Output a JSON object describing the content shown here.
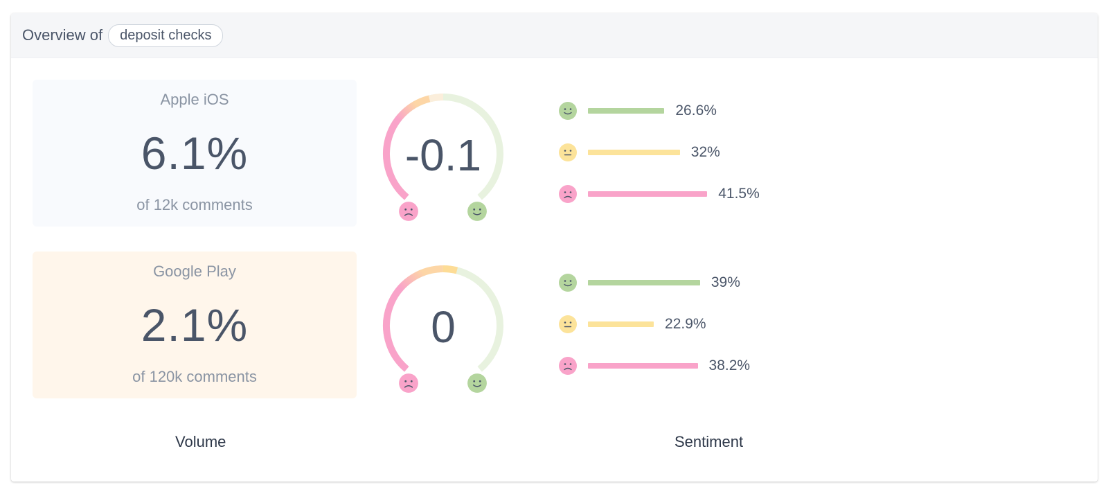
{
  "header": {
    "prefix": "Overview of",
    "topic": "deposit checks"
  },
  "footer": {
    "volume_label": "Volume",
    "sentiment_label": "Sentiment"
  },
  "colors": {
    "positive": "#b4d59e",
    "neutral": "#fce39a",
    "negative": "#f9a3c9"
  },
  "platforms": [
    {
      "name": "Apple iOS",
      "volume_pct": "6.1%",
      "comments": "of 12k comments",
      "box_color": "#f8fafd",
      "score_label": "-0.1",
      "score": -0.1,
      "sentiment": [
        {
          "type": "positive",
          "icon": "happy-face-icon",
          "value": 26.6,
          "label": "26.6%"
        },
        {
          "type": "neutral",
          "icon": "neutral-face-icon",
          "value": 32,
          "label": "32%"
        },
        {
          "type": "negative",
          "icon": "sad-face-icon",
          "value": 41.5,
          "label": "41.5%"
        }
      ]
    },
    {
      "name": "Google Play",
      "volume_pct": "2.1%",
      "comments": "of 120k comments",
      "box_color": "#fff6eb",
      "score_label": "0",
      "score": 0,
      "sentiment": [
        {
          "type": "positive",
          "icon": "happy-face-icon",
          "value": 39,
          "label": "39%"
        },
        {
          "type": "neutral",
          "icon": "neutral-face-icon",
          "value": 22.9,
          "label": "22.9%"
        },
        {
          "type": "negative",
          "icon": "sad-face-icon",
          "value": 38.2,
          "label": "38.2%"
        }
      ]
    }
  ]
}
